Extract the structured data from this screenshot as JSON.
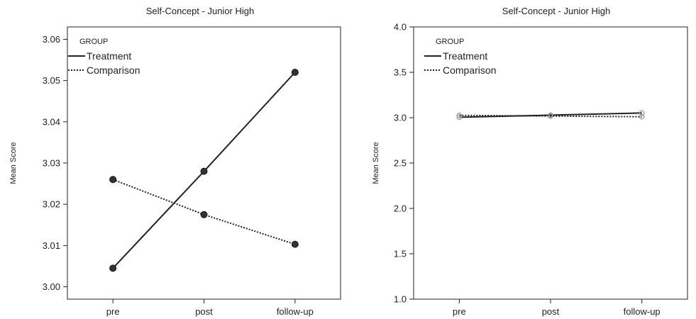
{
  "chart_data": [
    {
      "type": "line",
      "title": "Self-Concept - Junior High",
      "xlabel": "",
      "ylabel": "Mean Score",
      "categories": [
        "pre",
        "post",
        "follow-up"
      ],
      "ylim": [
        2.997,
        3.063
      ],
      "yticks": [
        "3.00",
        "3.01",
        "3.02",
        "3.03",
        "3.04",
        "3.05",
        "3.06"
      ],
      "legend": {
        "title": "GROUP",
        "placement": "top-left"
      },
      "series": [
        {
          "name": "Treatment",
          "values": [
            3.0045,
            3.028,
            3.052
          ],
          "style": "solid",
          "color": "#222222",
          "marker": "#222222"
        },
        {
          "name": "Comparison",
          "values": [
            3.026,
            3.0175,
            3.0103
          ],
          "style": "dotted",
          "color": "#222222",
          "marker": "#222222"
        }
      ],
      "grid": false
    },
    {
      "type": "line",
      "title": "Self-Concept - Junior High",
      "xlabel": "",
      "ylabel": "Mean Score",
      "categories": [
        "pre",
        "post",
        "follow-up"
      ],
      "ylim": [
        1.0,
        4.0
      ],
      "yticks": [
        "1.0",
        "1.5",
        "2.0",
        "2.5",
        "3.0",
        "3.5",
        "4.0"
      ],
      "legend": {
        "title": "GROUP",
        "placement": "top-left"
      },
      "series": [
        {
          "name": "Treatment",
          "values": [
            3.0045,
            3.028,
            3.052
          ],
          "style": "solid",
          "color": "#222222",
          "marker": "#9a9a9a"
        },
        {
          "name": "Comparison",
          "values": [
            3.026,
            3.0175,
            3.0103
          ],
          "style": "dotted",
          "color": "#222222",
          "marker": "#9a9a9a"
        }
      ],
      "grid": false
    }
  ]
}
